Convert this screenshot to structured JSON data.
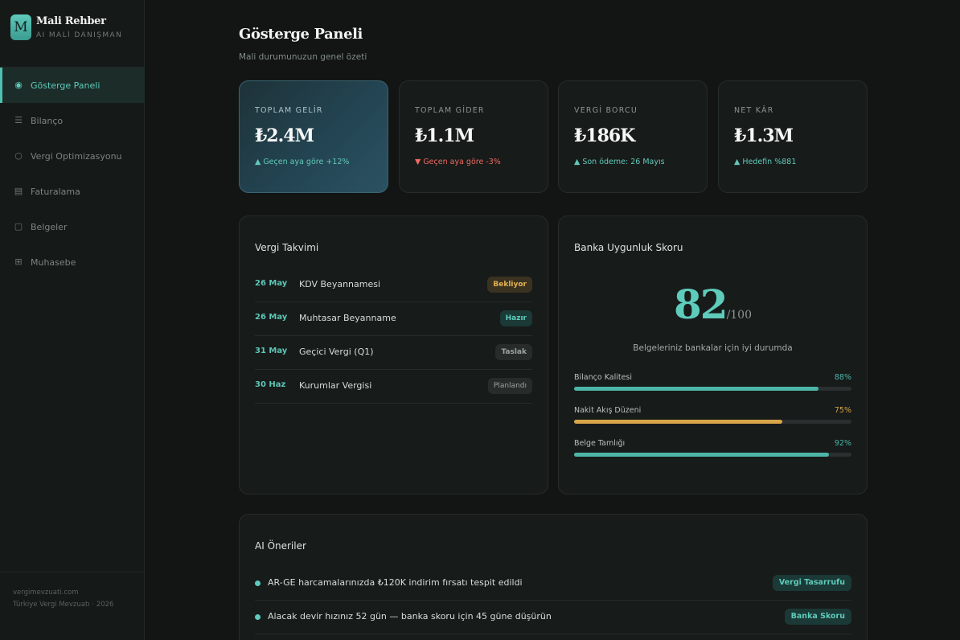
{
  "brand": {
    "logo_letter": "M",
    "name": "Mali Rehber",
    "subtitle": "AI MALİ DANIŞMAN"
  },
  "sidebar": {
    "items": [
      {
        "label": "Gösterge Paneli",
        "icon": "dashboard-icon",
        "active": true
      },
      {
        "label": "Bilanço",
        "icon": "list-icon"
      },
      {
        "label": "Vergi Optimizasyonu",
        "icon": "circle-icon"
      },
      {
        "label": "Faturalama",
        "icon": "invoice-icon"
      },
      {
        "label": "Belgeler",
        "icon": "document-icon"
      },
      {
        "label": "Muhasebe",
        "icon": "grid-icon"
      }
    ],
    "footer": {
      "line1": "vergimevzuati.com",
      "line2": "Türkiye Vergi Mevzuatı · 2026"
    }
  },
  "header": {
    "title": "Gösterge Paneli",
    "subtitle": "Mali durumunuzun genel özeti"
  },
  "stats": [
    {
      "label": "TOPLAM GELİR",
      "value": "₺2.4M",
      "delta": "▲ Geçen aya göre +12%",
      "trend": "up"
    },
    {
      "label": "TOPLAM GİDER",
      "value": "₺1.1M",
      "delta": "▼ Geçen aya göre -3%",
      "trend": "down"
    },
    {
      "label": "VERGİ BORCU",
      "value": "₺186K",
      "delta": "▲ Son ödeme: 26 Mayıs",
      "trend": "up"
    },
    {
      "label": "NET KÂR",
      "value": "₺1.3M",
      "delta": "▲ Hedefin %881",
      "trend": "up"
    }
  ],
  "tax_calendar": {
    "title": "Vergi Takvimi",
    "rows": [
      {
        "date": "26 May",
        "name": "KDV Beyannamesi",
        "status": "Bekliyor"
      },
      {
        "date": "26 May",
        "name": "Muhtasar Beyanname",
        "status": "Hazır"
      },
      {
        "date": "31 May",
        "name": "Geçici Vergi (Q1)",
        "status": "Taslak"
      },
      {
        "date": "30 Haz",
        "name": "Kurumlar Vergisi",
        "status": "Planlandı"
      }
    ]
  },
  "bank_score": {
    "title": "Banka Uygunluk Skoru",
    "score": "82",
    "max": "/100",
    "message": "Belgeleriniz bankalar için iyi durumda",
    "metrics": [
      {
        "label": "Bilanço Kalitesi",
        "value": "88%",
        "percent": 88,
        "color": "#4db6a8"
      },
      {
        "label": "Nakit Akış Düzeni",
        "value": "75%",
        "percent": 75,
        "color": "#d8a548"
      },
      {
        "label": "Belge Tamlığı",
        "value": "92%",
        "percent": 92,
        "color": "#4db6a8"
      }
    ]
  },
  "ai_recommendations": {
    "title": "AI Öneriler",
    "items": [
      {
        "text": "AR-GE harcamalarınızda ₺120K indirim fırsatı tespit edildi",
        "tag": "Vergi Tasarrufu"
      },
      {
        "text": "Alacak devir hızınız 52 gün — banka skoru için 45 güne düşürün",
        "tag": "Banka Skoru"
      }
    ]
  }
}
